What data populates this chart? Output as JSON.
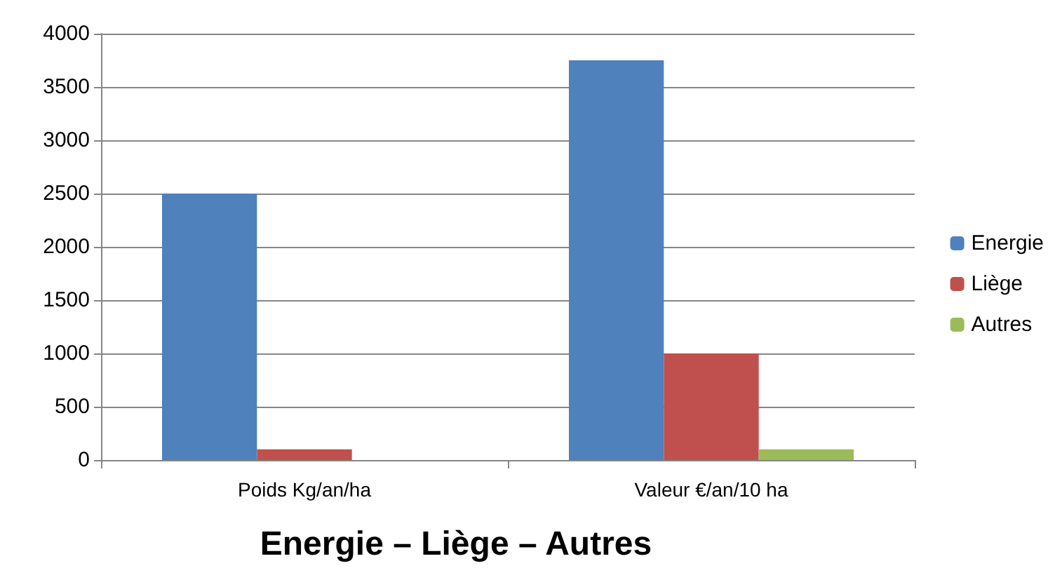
{
  "chart_data": {
    "type": "bar",
    "title": "Energie – Liège – Autres",
    "categories": [
      "Poids Kg/an/ha",
      "Valeur €/an/10 ha"
    ],
    "series": [
      {
        "name": "Energie",
        "color": "#4f81bd",
        "values": [
          2500,
          3750
        ]
      },
      {
        "name": "Liège",
        "color": "#c0504d",
        "values": [
          100,
          1000
        ]
      },
      {
        "name": "Autres",
        "color": "#9bbb59",
        "values": [
          0,
          100
        ]
      }
    ],
    "ylim": [
      0,
      4000
    ],
    "yticks": [
      0,
      500,
      1000,
      1500,
      2000,
      2500,
      3000,
      3500,
      4000
    ],
    "grid": "y",
    "legend": "right"
  }
}
